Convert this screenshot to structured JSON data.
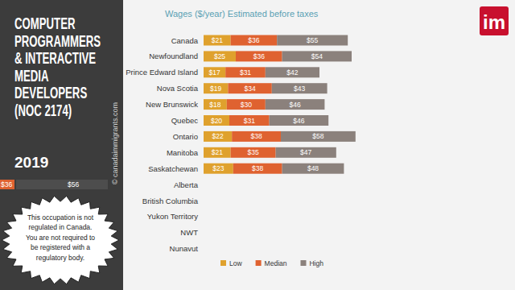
{
  "chart_data": {
    "type": "bar",
    "orientation": "horizontal",
    "stacked": true,
    "data_labels": true,
    "tick_labels": "y",
    "legend": "bottom",
    "title": "Wages ($/year) Estimated before taxes",
    "categories": [
      "Canada",
      "Newfoundland",
      "Prince Edward Island",
      "Nova Scotia",
      "New Brunswick",
      "Quebec",
      "Ontario",
      "Manitoba",
      "Saskatchewan",
      "Alberta",
      "British Columbia",
      "Yukon Territory",
      "NWT",
      "Nunavut"
    ],
    "xlim": [
      0,
      240
    ],
    "series": [
      {
        "name": "Low",
        "color": "#dfa12d",
        "values": [
          21,
          25,
          17,
          19,
          18,
          20,
          22,
          21,
          23,
          null,
          null,
          null,
          null,
          null
        ],
        "value_labels": [
          "$21",
          "$25",
          "$17",
          "$19",
          "$18",
          "$20",
          "$22",
          "$21",
          "$23",
          null,
          null,
          null,
          null,
          null
        ]
      },
      {
        "name": "Median",
        "color": "#df6230",
        "values": [
          36,
          36,
          31,
          34,
          30,
          31,
          38,
          35,
          38,
          null,
          null,
          null,
          null,
          null
        ],
        "value_labels": [
          "$36",
          "$36",
          "$31",
          "$34",
          "$30",
          "$31",
          "$38",
          "$35",
          "$38",
          null,
          null,
          null,
          null,
          null
        ]
      },
      {
        "name": "High",
        "color": "#8b817c",
        "values": [
          55,
          54,
          42,
          43,
          46,
          46,
          58,
          47,
          48,
          null,
          null,
          null,
          null,
          null
        ],
        "value_labels": [
          "$55",
          "$54",
          "$42",
          "$43",
          "$46",
          "$46",
          "$58",
          "$47",
          "$48",
          null,
          null,
          null,
          null,
          null
        ]
      }
    ]
  },
  "sidebar": {
    "title_lines": [
      "COMPUTER",
      "PROGRAMMERS",
      "& INTERACTIVE",
      "MEDIA",
      "DEVELOPERS",
      "(NOC 2174)"
    ],
    "year": "2019",
    "fragment_labels": [
      "$36",
      "$56"
    ],
    "copyright": "© canadaimmigrants.com",
    "note_lines": [
      "This occupation is not",
      "regulated in Canada.",
      "You are not required to",
      "be registered with a",
      "regulatory body."
    ]
  },
  "logo": {
    "text": "im"
  }
}
